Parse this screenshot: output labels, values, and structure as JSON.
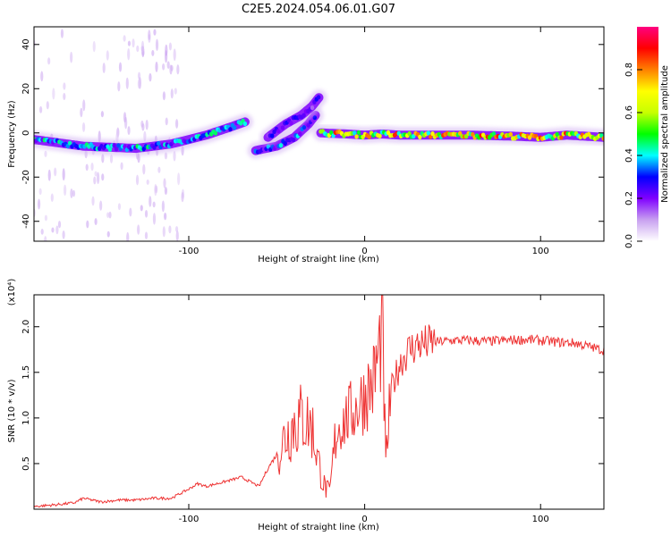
{
  "title": "C2E5.2024.054.06.01.G07",
  "chart_data": [
    {
      "type": "heatmap",
      "xlabel": "Height of straight line (km)",
      "ylabel": "Frequency (Hz)",
      "xlim": [
        -188,
        136
      ],
      "ylim": [
        -49,
        48
      ],
      "xticks": [
        -100,
        0,
        100
      ],
      "yticks": [
        -40,
        -20,
        0,
        20,
        40
      ],
      "colorbar": {
        "label": "Normalized spectral amplitude",
        "range": [
          0,
          1
        ],
        "ticks": [
          0.0,
          0.2,
          0.4,
          0.6,
          0.8
        ],
        "tick_labels": [
          "0.0",
          "0.2",
          "0.4",
          "0.6",
          "0.8"
        ],
        "colors": [
          "#ffffff",
          "#c8a0f0",
          "#8000ff",
          "#0000ff",
          "#00ffff",
          "#00ff00",
          "#c8ff00",
          "#ffff00",
          "#ff8000",
          "#ff0000",
          "#ff0080"
        ]
      },
      "tracks": [
        {
          "x": [
            -188,
            -160,
            -130,
            -110,
            -90,
            -75,
            -68
          ],
          "freq": [
            -3,
            -6,
            -7,
            -5,
            -1,
            3,
            5
          ],
          "peak": 0.45
        },
        {
          "x": [
            -62,
            -50,
            -40,
            -32,
            -28
          ],
          "freq": [
            -8,
            -6,
            -2,
            4,
            8
          ],
          "peak": 0.4
        },
        {
          "x": [
            -55,
            -45,
            -36,
            -30,
            -26
          ],
          "freq": [
            -2,
            4,
            8,
            12,
            16
          ],
          "peak": 0.3
        },
        {
          "x": [
            -25,
            -10,
            0,
            10,
            20,
            60,
            85,
            100,
            115,
            136
          ],
          "freq": [
            0,
            -0.5,
            -1,
            -0.5,
            -1,
            -1,
            -1.5,
            -2,
            -1,
            -2
          ],
          "peak": 0.85
        }
      ]
    },
    {
      "type": "line",
      "xlabel": "Height of straight line (km)",
      "ylabel": "SNR (10 * v/v)",
      "scale_label": "(x10⁴)",
      "xlim": [
        -188,
        136
      ],
      "ylim": [
        0,
        2.35
      ],
      "xticks": [
        -100,
        0,
        100
      ],
      "yticks": [
        0.5,
        1.0,
        1.5,
        2.0
      ],
      "ytick_labels": [
        "0.5",
        "1.0",
        "1.5",
        "2.0"
      ],
      "color": "#ee3333",
      "x": [
        -188,
        -175,
        -165,
        -160,
        -150,
        -140,
        -130,
        -120,
        -110,
        -100,
        -95,
        -90,
        -80,
        -70,
        -60,
        -55,
        -50,
        -45,
        -40,
        -35,
        -30,
        -27,
        -24,
        -20,
        -16,
        -12,
        -8,
        -5,
        0,
        5,
        8,
        10,
        12,
        15,
        20,
        25,
        30,
        40,
        50,
        60,
        70,
        80,
        90,
        100,
        110,
        120,
        130,
        136
      ],
      "y": [
        0.03,
        0.05,
        0.07,
        0.12,
        0.08,
        0.1,
        0.1,
        0.12,
        0.12,
        0.22,
        0.28,
        0.25,
        0.3,
        0.35,
        0.25,
        0.45,
        0.6,
        0.8,
        0.95,
        1.0,
        0.9,
        0.6,
        0.3,
        0.15,
        0.9,
        0.95,
        1.05,
        1.1,
        1.25,
        1.4,
        1.7,
        2.0,
        0.5,
        1.3,
        1.6,
        1.75,
        1.8,
        1.83,
        1.85,
        1.85,
        1.84,
        1.85,
        1.86,
        1.85,
        1.83,
        1.82,
        1.77,
        1.74
      ]
    }
  ]
}
